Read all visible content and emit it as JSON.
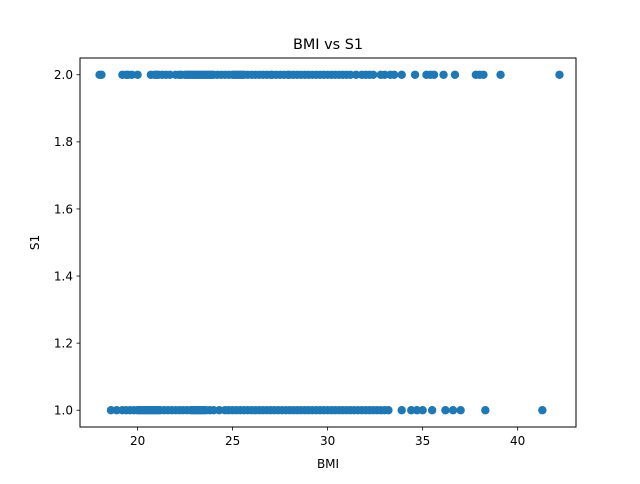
{
  "chart_data": {
    "type": "scatter",
    "title": "BMI vs S1",
    "xlabel": "BMI",
    "ylabel": "S1",
    "xlim": [
      16.97,
      43.07
    ],
    "ylim": [
      0.95,
      2.05
    ],
    "xticks": [
      20,
      25,
      30,
      35,
      40
    ],
    "yticks": [
      1.0,
      1.2,
      1.4,
      1.6,
      1.8,
      2.0
    ],
    "ytick_labels": [
      "1.0",
      "1.2",
      "1.4",
      "1.6",
      "1.8",
      "2.0"
    ],
    "grid": false,
    "legend": "none",
    "marker_color": "#1f77b4",
    "series": [
      {
        "x": [
          18.0,
          18.1,
          19.2,
          19.4,
          19.5,
          19.7,
          20.0,
          20.7,
          20.9,
          21.0,
          21.1,
          21.3,
          21.5,
          21.7,
          22.0,
          22.2,
          22.3,
          22.5,
          22.6,
          22.7,
          22.8,
          22.9,
          23.0,
          23.1,
          23.2,
          23.3,
          23.4,
          23.5,
          23.6,
          23.7,
          23.8,
          23.9,
          24.0,
          24.2,
          24.4,
          24.6,
          24.8,
          25.0,
          25.1,
          25.2,
          25.3,
          25.4,
          25.5,
          25.6,
          25.8,
          26.0,
          26.2,
          26.4,
          26.6,
          26.8,
          27.0,
          27.1,
          27.3,
          27.5,
          27.7,
          27.9,
          28.0,
          28.2,
          28.4,
          28.6,
          28.8,
          29.0,
          29.2,
          29.4,
          29.6,
          29.8,
          30.0,
          30.2,
          30.4,
          30.6,
          30.8,
          31.0,
          31.2,
          31.5,
          31.8,
          32.0,
          32.2,
          32.4,
          32.8,
          33.0,
          33.3,
          33.5,
          33.9,
          34.6,
          35.2,
          35.4,
          35.6,
          36.1,
          36.7,
          37.8,
          38.0,
          38.2,
          39.1,
          42.2
        ],
        "y": [
          2,
          2,
          2,
          2,
          2,
          2,
          2,
          2,
          2,
          2,
          2,
          2,
          2,
          2,
          2,
          2,
          2,
          2,
          2,
          2,
          2,
          2,
          2,
          2,
          2,
          2,
          2,
          2,
          2,
          2,
          2,
          2,
          2,
          2,
          2,
          2,
          2,
          2,
          2,
          2,
          2,
          2,
          2,
          2,
          2,
          2,
          2,
          2,
          2,
          2,
          2,
          2,
          2,
          2,
          2,
          2,
          2,
          2,
          2,
          2,
          2,
          2,
          2,
          2,
          2,
          2,
          2,
          2,
          2,
          2,
          2,
          2,
          2,
          2,
          2,
          2,
          2,
          2,
          2,
          2,
          2,
          2,
          2,
          2,
          2,
          2,
          2,
          2,
          2,
          2,
          2,
          2,
          2,
          2
        ]
      },
      {
        "x": [
          18.6,
          18.9,
          19.2,
          19.4,
          19.6,
          19.8,
          20.0,
          20.1,
          20.2,
          20.3,
          20.4,
          20.5,
          20.6,
          20.7,
          20.8,
          20.9,
          21.0,
          21.1,
          21.2,
          21.4,
          21.6,
          21.8,
          22.0,
          22.2,
          22.4,
          22.6,
          22.8,
          22.9,
          23.0,
          23.1,
          23.2,
          23.3,
          23.4,
          23.5,
          23.6,
          23.8,
          24.0,
          24.3,
          24.6,
          24.8,
          25.0,
          25.2,
          25.4,
          25.6,
          25.8,
          26.0,
          26.2,
          26.4,
          26.6,
          26.8,
          27.0,
          27.2,
          27.4,
          27.6,
          27.8,
          28.0,
          28.2,
          28.4,
          28.6,
          28.8,
          29.0,
          29.2,
          29.4,
          29.6,
          29.8,
          30.0,
          30.2,
          30.4,
          30.6,
          30.8,
          31.0,
          31.2,
          31.4,
          31.6,
          31.8,
          32.0,
          32.2,
          32.4,
          32.6,
          32.8,
          33.0,
          33.2,
          33.9,
          34.4,
          34.7,
          35.0,
          35.5,
          36.2,
          36.6,
          37.0,
          38.3,
          41.3
        ],
        "y": [
          1,
          1,
          1,
          1,
          1,
          1,
          1,
          1,
          1,
          1,
          1,
          1,
          1,
          1,
          1,
          1,
          1,
          1,
          1,
          1,
          1,
          1,
          1,
          1,
          1,
          1,
          1,
          1,
          1,
          1,
          1,
          1,
          1,
          1,
          1,
          1,
          1,
          1,
          1,
          1,
          1,
          1,
          1,
          1,
          1,
          1,
          1,
          1,
          1,
          1,
          1,
          1,
          1,
          1,
          1,
          1,
          1,
          1,
          1,
          1,
          1,
          1,
          1,
          1,
          1,
          1,
          1,
          1,
          1,
          1,
          1,
          1,
          1,
          1,
          1,
          1,
          1,
          1,
          1,
          1,
          1,
          1,
          1,
          1,
          1,
          1,
          1,
          1,
          1,
          1,
          1,
          1
        ]
      }
    ]
  }
}
